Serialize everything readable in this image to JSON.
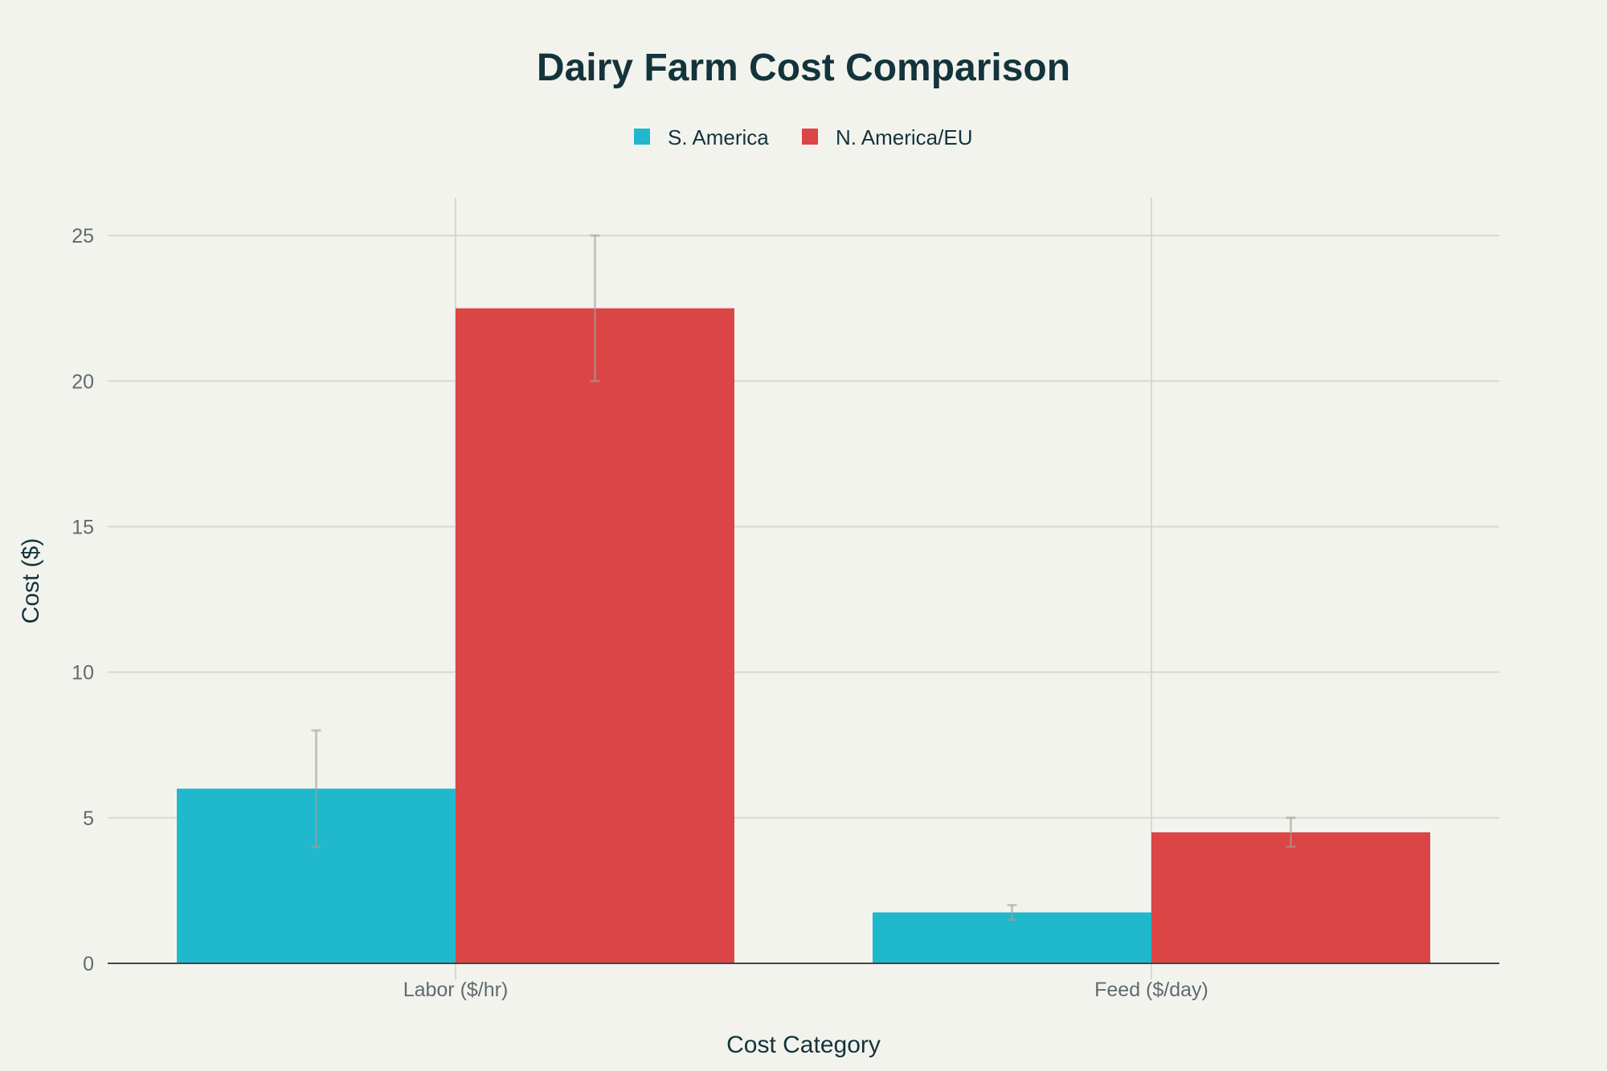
{
  "chart_data": {
    "type": "bar",
    "title": "Dairy Farm Cost Comparison",
    "xlabel": "Cost Category",
    "ylabel": "Cost ($)",
    "categories": [
      "Labor ($/hr)",
      "Feed ($/day)"
    ],
    "ylim": [
      0,
      26.3
    ],
    "yticks": [
      0,
      5,
      10,
      15,
      20,
      25
    ],
    "grid": true,
    "legend_position": "top-center",
    "series": [
      {
        "name": "S. America",
        "color": "#1fb8cd",
        "values": [
          6,
          1.75
        ],
        "error_low": [
          4,
          1.5
        ],
        "error_high": [
          8,
          2
        ]
      },
      {
        "name": "N. America/EU",
        "color": "#db4545",
        "values": [
          22.5,
          4.5
        ],
        "error_low": [
          20,
          4
        ],
        "error_high": [
          25,
          5
        ]
      }
    ]
  }
}
